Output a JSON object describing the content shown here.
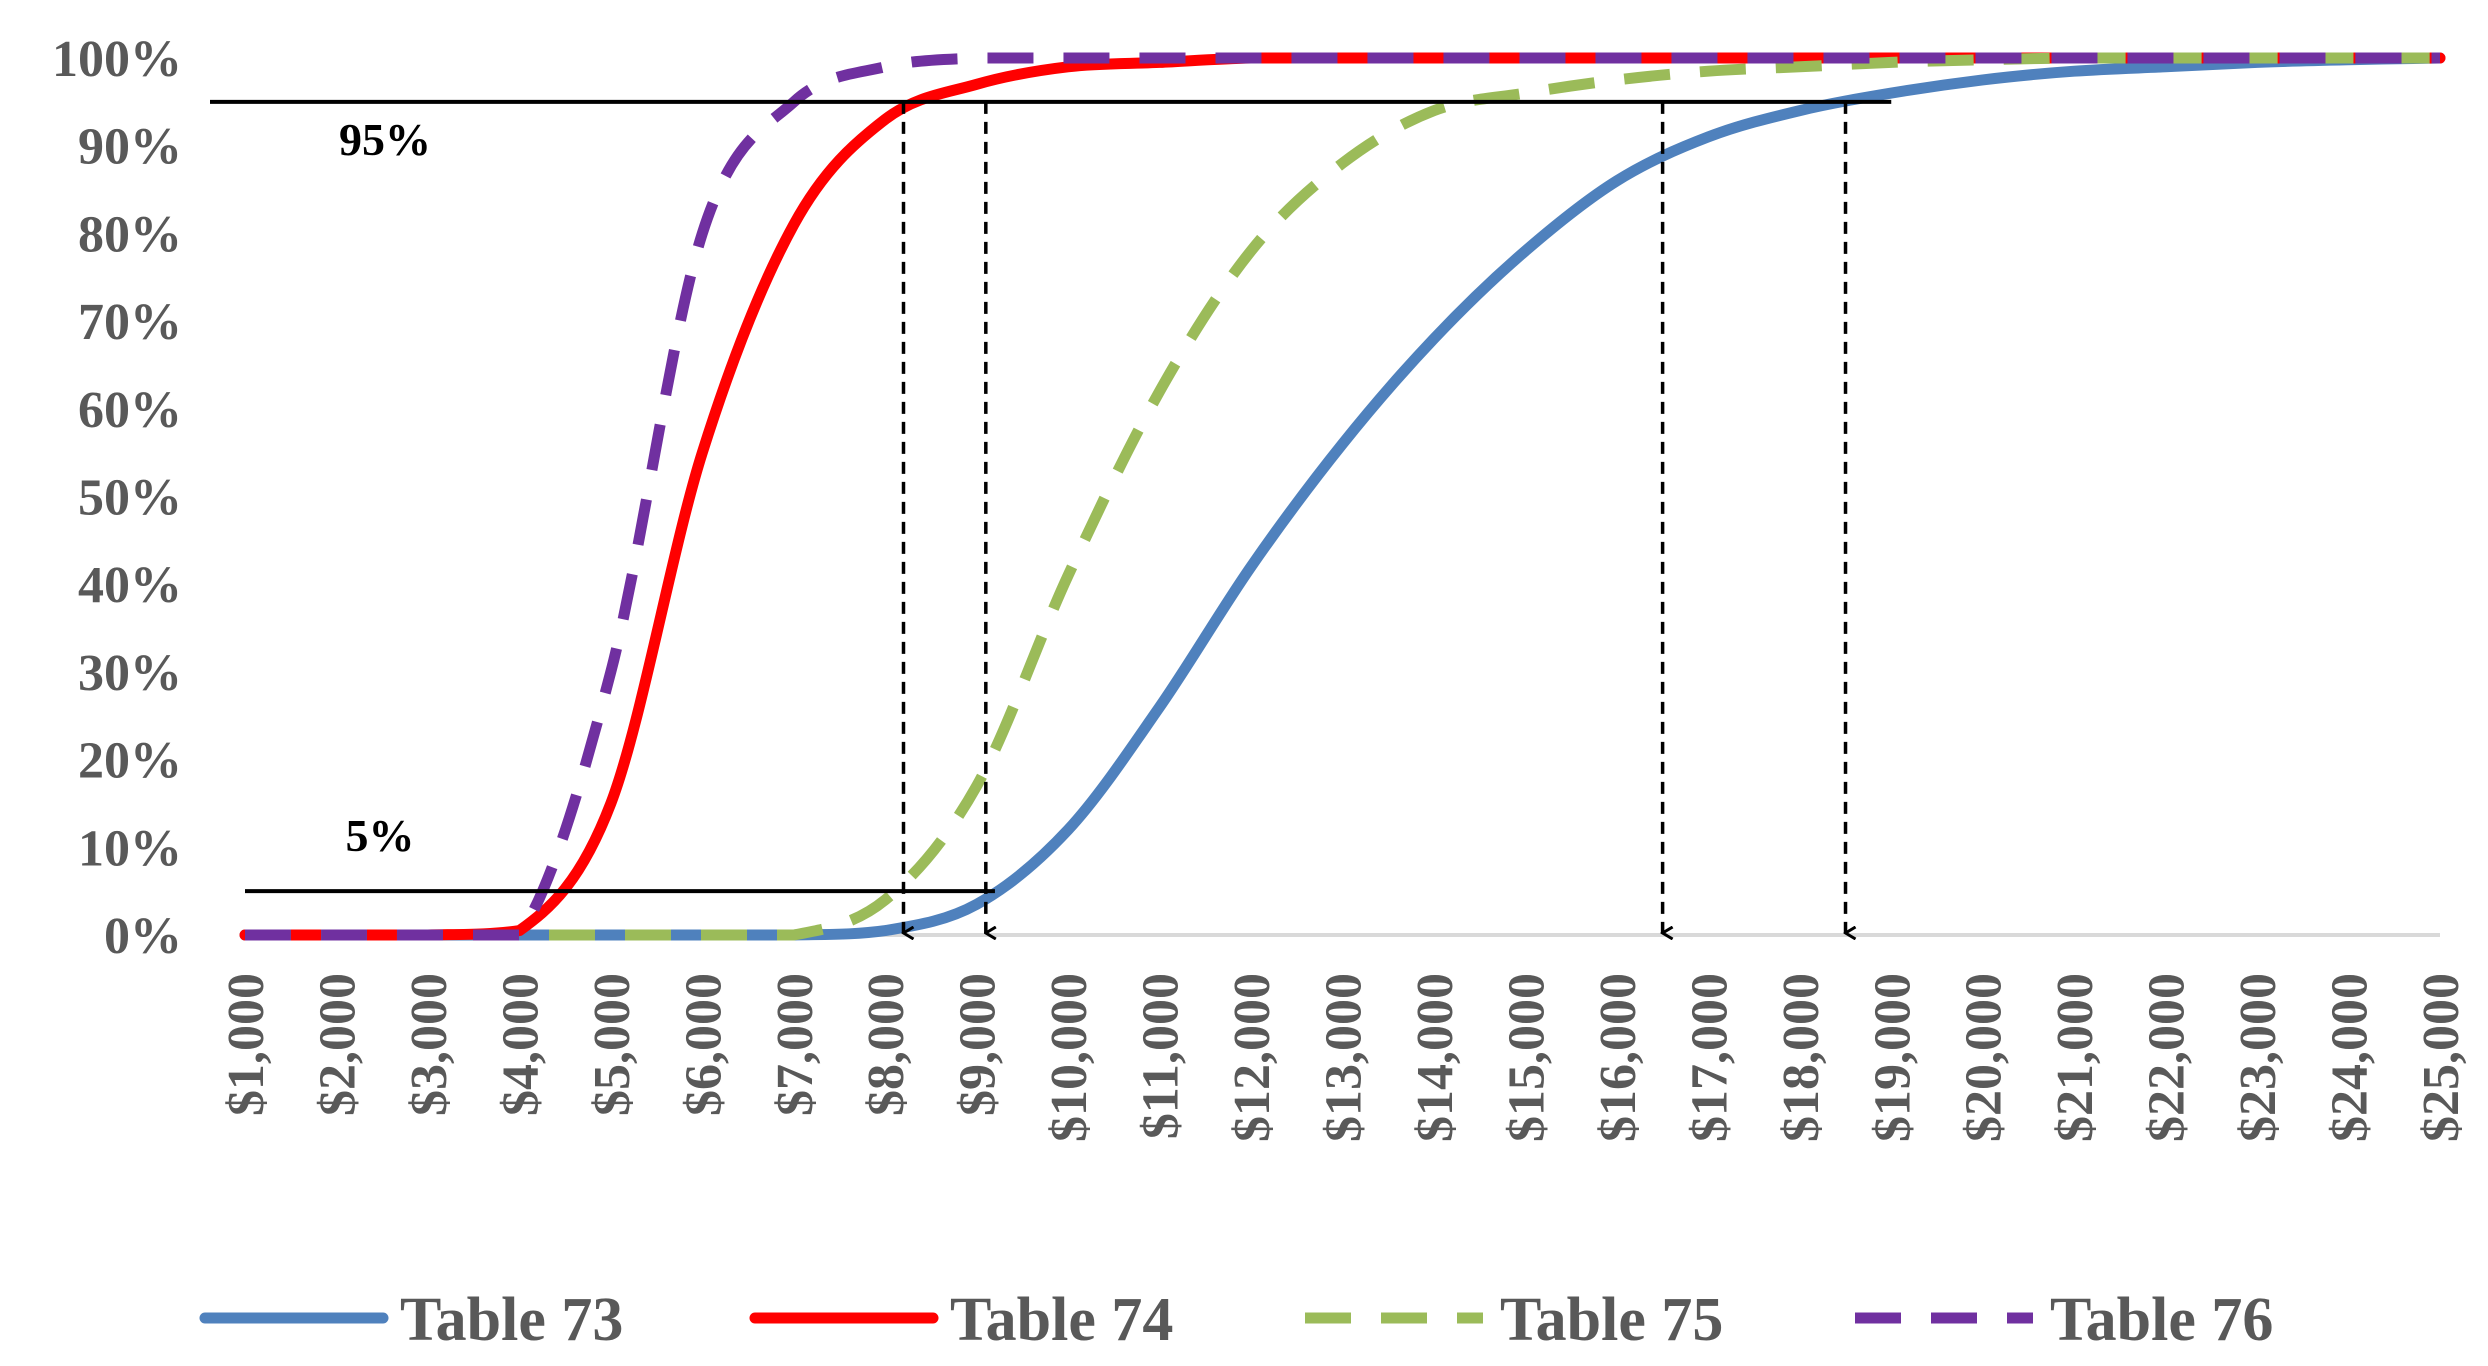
{
  "chart_data": {
    "type": "line",
    "title": "",
    "xlabel": "",
    "ylabel": "",
    "x": [
      1000,
      2000,
      3000,
      4000,
      5000,
      6000,
      7000,
      8000,
      9000,
      10000,
      11000,
      12000,
      13000,
      14000,
      15000,
      16000,
      17000,
      18000,
      19000,
      20000,
      21000,
      22000,
      23000,
      24000,
      25000
    ],
    "x_tick_labels": [
      "$1,000",
      "$2,000",
      "$3,000",
      "$4,000",
      "$5,000",
      "$6,000",
      "$7,000",
      "$8,000",
      "$9,000",
      "$10,000",
      "$11,000",
      "$12,000",
      "$13,000",
      "$14,000",
      "$15,000",
      "$16,000",
      "$17,000",
      "$18,000",
      "$19,000",
      "$20,000",
      "$21,000",
      "$22,000",
      "$23,000",
      "$24,000",
      "$25,000"
    ],
    "y_tick_labels": [
      "0%",
      "10%",
      "20%",
      "30%",
      "40%",
      "50%",
      "60%",
      "70%",
      "80%",
      "90%",
      "100%"
    ],
    "ylim": [
      0,
      100
    ],
    "xlim": [
      1000,
      25000
    ],
    "grid": false,
    "legend_position": "bottom",
    "series": [
      {
        "name": "Table 73",
        "color": "#4f81bd",
        "dash": "solid",
        "values": [
          0,
          0,
          0,
          0,
          0,
          0,
          0,
          0.5,
          3.5,
          12,
          26,
          42,
          56,
          68,
          78,
          86,
          91,
          94,
          96,
          97.5,
          98.5,
          99,
          99.5,
          99.8,
          100
        ]
      },
      {
        "name": "Table 74",
        "color": "#ff0000",
        "dash": "solid",
        "values": [
          0,
          0,
          0,
          0.5,
          15,
          55,
          81,
          93,
          97,
          99,
          99.5,
          100,
          100,
          100,
          100,
          100,
          100,
          100,
          100,
          100,
          100,
          100,
          100,
          100,
          100
        ]
      },
      {
        "name": "Table 75",
        "color": "#9bbb59",
        "dash": "dashed",
        "values": [
          0,
          0,
          0,
          0,
          0,
          0,
          0,
          4,
          17,
          41,
          62,
          78,
          88,
          94,
          96,
          97.5,
          98.5,
          99,
          99.5,
          99.8,
          100,
          100,
          100,
          100,
          100
        ]
      },
      {
        "name": "Table 76",
        "color": "#7030a0",
        "dash": "dashed",
        "values": [
          0,
          0,
          0,
          0,
          30,
          80,
          95,
          99,
          100,
          100,
          100,
          100,
          100,
          100,
          100,
          100,
          100,
          100,
          100,
          100,
          100,
          100,
          100,
          100,
          100
        ]
      }
    ],
    "reference_lines": [
      {
        "label": "95%",
        "y": 95,
        "x_from": 0,
        "x_to": 19000
      },
      {
        "label": "5%",
        "y": 5,
        "x_from": 1000,
        "x_to": 9200
      }
    ],
    "drop_arrows": [
      {
        "x": 8000
      },
      {
        "x": 9000
      },
      {
        "x": 16000
      },
      {
        "x": 18000
      }
    ]
  }
}
